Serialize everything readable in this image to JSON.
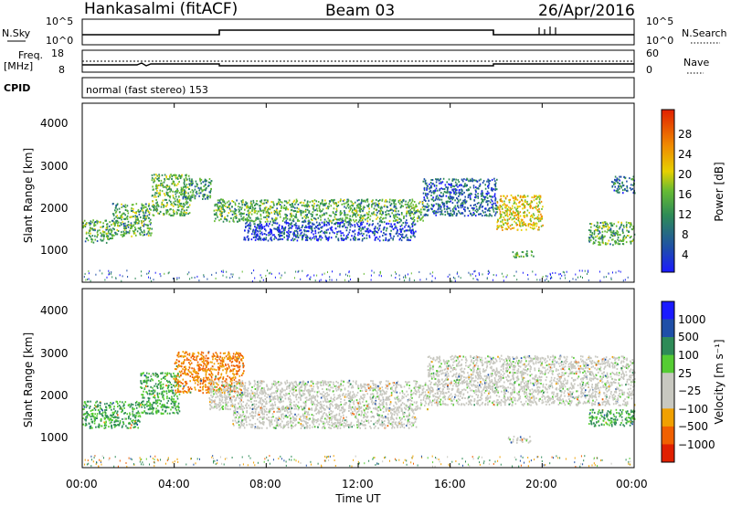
{
  "header": {
    "site": "Hankasalmi (fitACF)",
    "beam": "Beam 03",
    "date": "26/Apr/2016"
  },
  "top_panels": {
    "nsky_label": "N.Sky",
    "nsearch_label": "N.Search",
    "count_ticks_left": [
      "10^5",
      "10^0"
    ],
    "count_ticks_right": [
      "10^5",
      "10^0"
    ],
    "freq_label_line1": "Freq.",
    "freq_label_line2": "[MHz]",
    "freq_ticks": [
      "18",
      "8"
    ],
    "nave_label": "Nave",
    "nave_ticks": [
      "60",
      "0"
    ],
    "cpid_label": "CPID",
    "cpid_text": "normal (fast stereo) 153"
  },
  "x_axis": {
    "label": "Time UT",
    "ticks": [
      "00:00",
      "04:00",
      "08:00",
      "12:00",
      "16:00",
      "20:00",
      "00:00"
    ]
  },
  "power_panel": {
    "ylabel": "Slant Range [km]",
    "yticks": [
      "4000",
      "3000",
      "2000",
      "1000"
    ],
    "colorbar_label": "Power [dB]",
    "colorbar_ticks": [
      "28",
      "24",
      "20",
      "16",
      "12",
      "8",
      "4"
    ]
  },
  "velocity_panel": {
    "ylabel": "Slant Range [km]",
    "yticks": [
      "4000",
      "3000",
      "2000",
      "1000"
    ],
    "colorbar_label": "Velocity [m s⁻¹]",
    "colorbar_ticks": [
      "1000",
      "500",
      "100",
      "25",
      "−25",
      "−100",
      "−500",
      "−1000"
    ]
  },
  "chart_data": [
    {
      "type": "heatmap",
      "title": "",
      "xlabel": "Time UT",
      "ylabel": "Slant Range [km]",
      "xlim_hours": [
        0,
        24
      ],
      "ylim": [
        180,
        4500
      ],
      "quantity": "Power [dB]",
      "colorbar_range": [
        0,
        30
      ],
      "colors": [
        "#1a1aff",
        "#1f4fa8",
        "#2e8b57",
        "#66bb33",
        "#e6d000",
        "#f08a00",
        "#e02000"
      ],
      "regions": [
        {
          "t": [
            0.0,
            1.3
          ],
          "r": [
            1150,
            1700
          ],
          "level": 14
        },
        {
          "t": [
            1.3,
            3.0
          ],
          "r": [
            1300,
            2100
          ],
          "level": 14
        },
        {
          "t": [
            3.0,
            4.7
          ],
          "r": [
            1800,
            2800
          ],
          "level": 15
        },
        {
          "t": [
            4.3,
            5.6
          ],
          "r": [
            2200,
            2700
          ],
          "level": 12
        },
        {
          "t": [
            5.7,
            14.8
          ],
          "r": [
            1650,
            2200
          ],
          "level": 14
        },
        {
          "t": [
            7.0,
            14.5
          ],
          "r": [
            1200,
            1650
          ],
          "level": 7
        },
        {
          "t": [
            14.8,
            18.0
          ],
          "r": [
            1800,
            2700
          ],
          "level": 9
        },
        {
          "t": [
            18.0,
            20.0
          ],
          "r": [
            1450,
            2300
          ],
          "level": 20
        },
        {
          "t": [
            18.7,
            19.6
          ],
          "r": [
            800,
            950
          ],
          "level": 15
        },
        {
          "t": [
            22.0,
            24.0
          ],
          "r": [
            1100,
            1650
          ],
          "level": 14
        },
        {
          "t": [
            23.0,
            24.0
          ],
          "r": [
            2350,
            2750
          ],
          "level": 10
        }
      ]
    },
    {
      "type": "heatmap",
      "title": "",
      "xlabel": "Time UT",
      "ylabel": "Slant Range [km]",
      "xlim_hours": [
        0,
        24
      ],
      "ylim": [
        180,
        4500
      ],
      "quantity": "Velocity [m s-1]",
      "colorbar_range": [
        -1000,
        1000
      ],
      "colors": [
        "#e02000",
        "#f06000",
        "#f0a000",
        "#c8c8c0",
        "#c8c8c0",
        "#55cc33",
        "#2e8b57",
        "#1f4fa8",
        "#1a1aff"
      ],
      "regions": [
        {
          "t": [
            0.0,
            2.5
          ],
          "r": [
            1150,
            1800
          ],
          "velocity": 100
        },
        {
          "t": [
            2.5,
            4.2
          ],
          "r": [
            1500,
            2500
          ],
          "velocity": 100
        },
        {
          "t": [
            4.0,
            7.0
          ],
          "r": [
            2000,
            3000
          ],
          "velocity": -500
        },
        {
          "t": [
            5.5,
            15.0
          ],
          "r": [
            1600,
            2300
          ],
          "velocity": 0
        },
        {
          "t": [
            6.5,
            14.5
          ],
          "r": [
            1150,
            1650
          ],
          "velocity": 0
        },
        {
          "t": [
            15.0,
            24.0
          ],
          "r": [
            1700,
            2900
          ],
          "velocity": 0
        },
        {
          "t": [
            18.5,
            19.5
          ],
          "r": [
            800,
            950
          ],
          "velocity": 0
        },
        {
          "t": [
            22.0,
            24.0
          ],
          "r": [
            1200,
            1600
          ],
          "velocity": 100
        }
      ]
    }
  ]
}
